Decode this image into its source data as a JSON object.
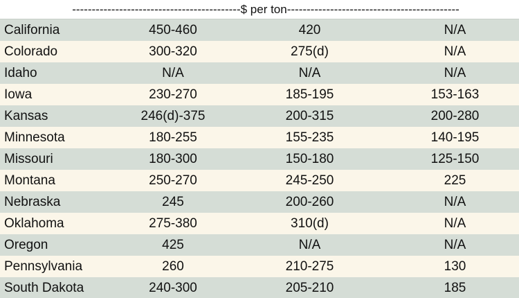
{
  "header": {
    "unit_label": "-------------------------------------------$ per ton--------------------------------------------"
  },
  "rows": [
    {
      "state": "California",
      "col1": "450-460",
      "col2": "420",
      "col3": "N/A"
    },
    {
      "state": "Colorado",
      "col1": "300-320",
      "col2": "275(d)",
      "col3": "N/A"
    },
    {
      "state": "Idaho",
      "col1": "N/A",
      "col2": "N/A",
      "col3": "N/A"
    },
    {
      "state": "Iowa",
      "col1": "230-270",
      "col2": "185-195",
      "col3": "153-163"
    },
    {
      "state": "Kansas",
      "col1": "246(d)-375",
      "col2": "200-315",
      "col3": "200-280"
    },
    {
      "state": "Minnesota",
      "col1": "180-255",
      "col2": "155-235",
      "col3": "140-195"
    },
    {
      "state": "Missouri",
      "col1": "180-300",
      "col2": "150-180",
      "col3": "125-150"
    },
    {
      "state": "Montana",
      "col1": "250-270",
      "col2": "245-250",
      "col3": "225"
    },
    {
      "state": "Nebraska",
      "col1": "245",
      "col2": "200-260",
      "col3": "N/A"
    },
    {
      "state": "Oklahoma",
      "col1": "275-380",
      "col2": "310(d)",
      "col3": "N/A"
    },
    {
      "state": "Oregon",
      "col1": "425",
      "col2": "N/A",
      "col3": "N/A"
    },
    {
      "state": "Pennsylvania",
      "col1": "260",
      "col2": "210-275",
      "col3": "130"
    },
    {
      "state": "South Dakota",
      "col1": "240-300",
      "col2": "205-210",
      "col3": "185"
    }
  ],
  "colors": {
    "row_green": "#d5ddd6",
    "row_cream": "#fbf6e9",
    "header_bg": "#ffffff"
  }
}
